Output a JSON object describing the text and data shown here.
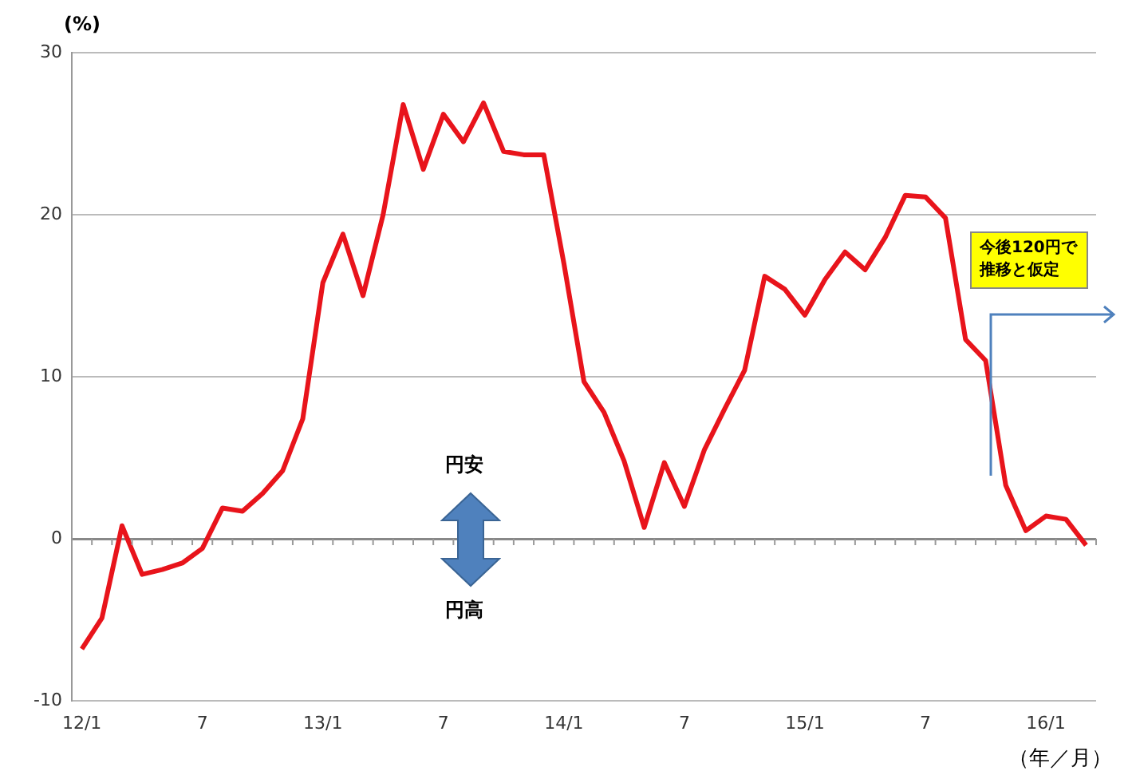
{
  "chart_data": {
    "type": "line",
    "ylabel": "(%)",
    "xlabel": "（年／月）",
    "categories": [
      "12/1",
      null,
      null,
      null,
      null,
      null,
      "7",
      null,
      null,
      null,
      null,
      null,
      "13/1",
      null,
      null,
      null,
      null,
      null,
      "7",
      null,
      null,
      null,
      null,
      null,
      "14/1",
      null,
      null,
      null,
      null,
      null,
      "7",
      null,
      null,
      null,
      null,
      null,
      "15/1",
      null,
      null,
      null,
      null,
      null,
      "7",
      null,
      null,
      null,
      null,
      null,
      "16/1",
      null,
      null
    ],
    "series": [
      {
        "color": "#e8141b",
        "values": [
          -6.8,
          -4.9,
          0.8,
          -2.2,
          -1.9,
          -1.5,
          -0.6,
          1.9,
          1.7,
          2.8,
          4.2,
          7.4,
          15.8,
          18.8,
          15.0,
          20.0,
          26.8,
          22.8,
          26.2,
          24.5,
          26.9,
          23.9,
          23.7,
          23.7,
          17.0,
          9.7,
          7.8,
          4.8,
          0.7,
          4.7,
          2.0,
          5.5,
          8.0,
          10.4,
          16.2,
          15.4,
          13.8,
          16.0,
          17.7,
          16.6,
          18.6,
          21.2,
          21.1,
          19.8,
          12.3,
          11.0,
          3.3,
          0.5,
          1.4,
          1.2,
          -0.4
        ]
      }
    ],
    "ylim": [
      -10,
      30
    ],
    "yticks": [
      -10,
      0,
      10,
      20,
      30
    ],
    "grid": "y",
    "legend": false,
    "marker": "none",
    "line_style": "solid",
    "annotations": [
      "円安",
      "円高",
      "今後120円で推移と仮定"
    ]
  }
}
